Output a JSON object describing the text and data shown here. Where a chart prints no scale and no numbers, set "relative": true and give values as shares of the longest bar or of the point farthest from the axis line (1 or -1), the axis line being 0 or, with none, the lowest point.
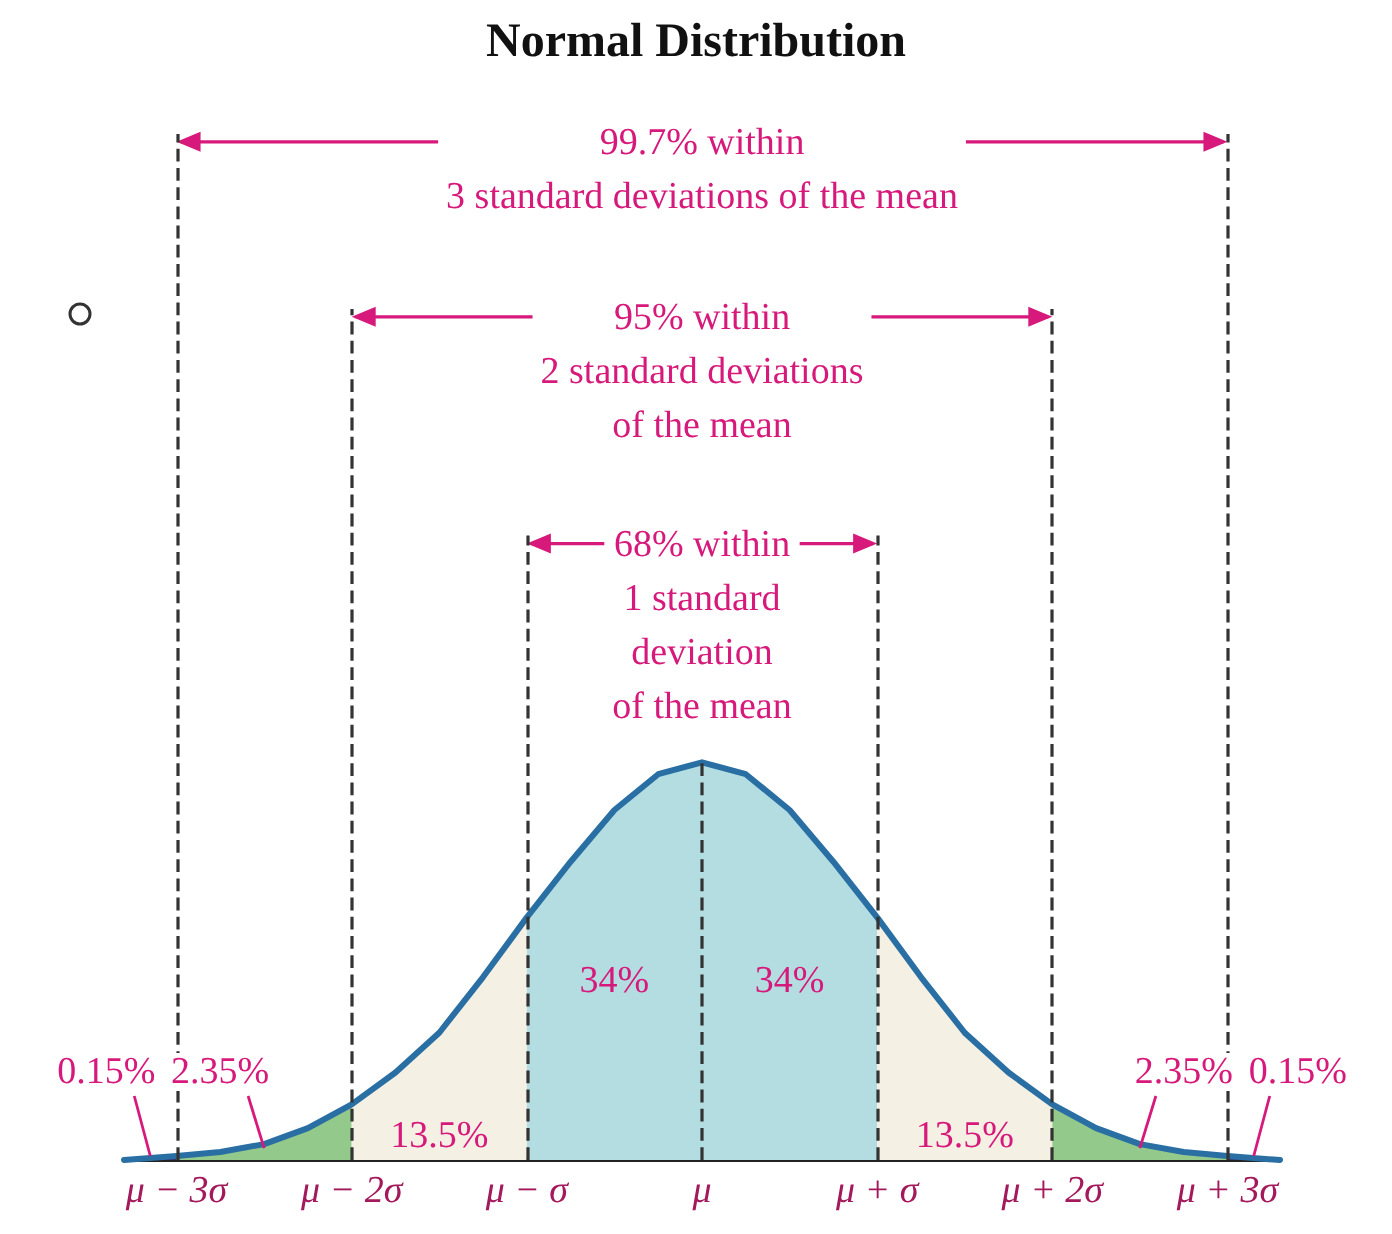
{
  "chart_data": {
    "type": "area",
    "title": "Normal Distribution",
    "relative": true,
    "tick_labels": "x",
    "marker": "none",
    "xlim": [
      -3.3,
      3.3
    ],
    "xticks": [
      {
        "value": -3,
        "label": "μ − 3σ"
      },
      {
        "value": -2,
        "label": "μ − 2σ"
      },
      {
        "value": -1,
        "label": "μ − σ"
      },
      {
        "value": 0,
        "label": "μ"
      },
      {
        "value": 1,
        "label": "μ + σ"
      },
      {
        "value": 2,
        "label": "μ + 2σ"
      },
      {
        "value": 3,
        "label": "μ + 3σ"
      }
    ],
    "series": [
      {
        "color": "#3b2a6b",
        "x": [
          -3.3,
          -3
        ],
        "values": [
          0,
          0.01
        ]
      },
      {
        "color": "#93c98b",
        "x": [
          -3,
          -2.75,
          -2.5,
          -2.25,
          -2
        ],
        "values": [
          0.01,
          0.02,
          0.04,
          0.08,
          0.14
        ]
      },
      {
        "color": "#f4f0e4",
        "x": [
          -2,
          -1.75,
          -1.5,
          -1.25,
          -1
        ],
        "values": [
          0.14,
          0.22,
          0.32,
          0.46,
          0.61
        ]
      },
      {
        "color": "#b4dde1",
        "x": [
          -1,
          -0.75,
          -0.5,
          -0.25,
          0,
          0.25,
          0.5,
          0.75,
          1
        ],
        "values": [
          0.61,
          0.75,
          0.88,
          0.97,
          1,
          0.97,
          0.88,
          0.75,
          0.61
        ]
      },
      {
        "color": "#f4f0e4",
        "x": [
          1,
          1.25,
          1.5,
          1.75,
          2
        ],
        "values": [
          0.61,
          0.46,
          0.32,
          0.22,
          0.14
        ]
      },
      {
        "color": "#93c98b",
        "x": [
          2,
          2.25,
          2.5,
          2.75,
          3
        ],
        "values": [
          0.14,
          0.08,
          0.04,
          0.02,
          0.01
        ]
      },
      {
        "color": "#3b2a6b",
        "x": [
          3,
          3.3
        ],
        "values": [
          0.01,
          0
        ]
      },
      {
        "type": "line",
        "color": "#2a6fa3",
        "x": [
          -3.3,
          -3,
          -2.75,
          -2.5,
          -2.25,
          -2,
          -1.75,
          -1.5,
          -1.25,
          -1,
          -0.75,
          -0.5,
          -0.25,
          0,
          0.25,
          0.5,
          0.75,
          1,
          1.25,
          1.5,
          1.75,
          2,
          2.25,
          2.5,
          2.75,
          3,
          3.3
        ],
        "values": [
          0,
          0.01,
          0.02,
          0.04,
          0.08,
          0.14,
          0.22,
          0.32,
          0.46,
          0.61,
          0.75,
          0.88,
          0.97,
          1,
          0.97,
          0.88,
          0.75,
          0.61,
          0.46,
          0.32,
          0.22,
          0.14,
          0.08,
          0.04,
          0.02,
          0.01,
          0
        ]
      }
    ],
    "ref_lines": [
      {
        "axis": "x",
        "value": -3,
        "color": "#333333",
        "line_style": "dashed"
      },
      {
        "axis": "x",
        "value": -2,
        "color": "#333333",
        "line_style": "dashed"
      },
      {
        "axis": "x",
        "value": -1,
        "color": "#333333",
        "line_style": "dashed"
      },
      {
        "axis": "x",
        "value": 0,
        "color": "#333333",
        "line_style": "dashed"
      },
      {
        "axis": "x",
        "value": 1,
        "color": "#333333",
        "line_style": "dashed"
      },
      {
        "axis": "x",
        "value": 2,
        "color": "#333333",
        "line_style": "dashed"
      },
      {
        "axis": "x",
        "value": 3,
        "color": "#333333",
        "line_style": "dashed"
      }
    ],
    "annotations": [
      "99.7% within\n3 standard deviations of the mean",
      "95% within\n2 standard deviations\nof the mean",
      "68% within\n1 standard\ndeviation\nof the mean",
      "34%",
      "34%",
      "13.5%",
      "13.5%",
      {
        "text": "2.35%",
        "x": -2.5,
        "y": 0.02
      },
      {
        "text": "2.35%",
        "x": 2.5,
        "y": 0.02
      },
      {
        "text": "0.15%",
        "x": -3.15,
        "y": 0
      },
      {
        "text": "0.15%",
        "x": 3.15,
        "y": 0
      }
    ]
  }
}
